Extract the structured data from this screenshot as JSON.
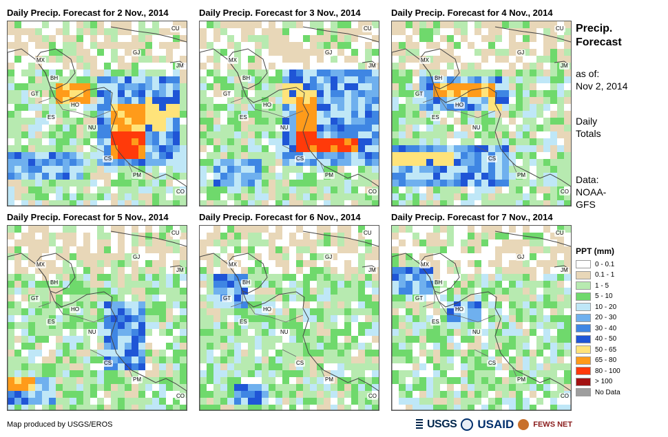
{
  "panels": [
    {
      "title": "Daily Precip. Forecast for 2 Nov., 2014",
      "date": "2 Nov., 2014",
      "seed": 11,
      "heavy": "panel1"
    },
    {
      "title": "Daily Precip. Forecast for 3 Nov., 2014",
      "date": "3 Nov., 2014",
      "seed": 23,
      "heavy": "panel2"
    },
    {
      "title": "Daily Precip. Forecast for 4 Nov., 2014",
      "date": "4 Nov., 2014",
      "seed": 37,
      "heavy": "panel3"
    },
    {
      "title": "Daily Precip. Forecast for 5 Nov., 2014",
      "date": "5 Nov., 2014",
      "seed": 41,
      "heavy": "panel4"
    },
    {
      "title": "Daily Precip. Forecast for 6 Nov., 2014",
      "date": "6 Nov., 2014",
      "seed": 53,
      "heavy": "panel5"
    },
    {
      "title": "Daily Precip. Forecast for 7 Nov., 2014",
      "date": "7 Nov., 2014",
      "seed": 67,
      "heavy": "panel6"
    }
  ],
  "country_codes": [
    "CU",
    "MX",
    "GJ",
    "JM",
    "BH",
    "GT",
    "HO",
    "ES",
    "NU",
    "CS",
    "PM",
    "CO"
  ],
  "side": {
    "title_line1": "Precip.",
    "title_line2": "Forecast",
    "as_of_label": "as of:",
    "as_of_date": "Nov 2, 2014",
    "totals_line1": "Daily",
    "totals_line2": "Totals",
    "data_line1": "Data:",
    "data_line2": "NOAA-",
    "data_line3": "GFS"
  },
  "legend": {
    "title": "PPT (mm)",
    "items": [
      {
        "label": "0 - 0.1",
        "color": "#ffffff"
      },
      {
        "label": "0.1 - 1",
        "color": "#e8d7b8"
      },
      {
        "label": "1 - 5",
        "color": "#b7eab0"
      },
      {
        "label": "5 - 10",
        "color": "#6fd96c"
      },
      {
        "label": "10 - 20",
        "color": "#bfe7f7"
      },
      {
        "label": "20 - 30",
        "color": "#6fb0ee"
      },
      {
        "label": "30 - 40",
        "color": "#3f86e3"
      },
      {
        "label": "40 - 50",
        "color": "#1f55d6"
      },
      {
        "label": "50 - 65",
        "color": "#ffe37a"
      },
      {
        "label": "65 - 80",
        "color": "#ff9b1a"
      },
      {
        "label": "80 - 100",
        "color": "#ff3a0a"
      },
      {
        "label": "> 100",
        "color": "#a31212"
      },
      {
        "label": "No Data",
        "color": "#9e9e9e"
      }
    ]
  },
  "footer": {
    "credit": "Map produced by USGS/EROS",
    "logo_usgs": "USGS",
    "logo_usaid": "USAID",
    "logo_fews": "FEWS NET"
  }
}
